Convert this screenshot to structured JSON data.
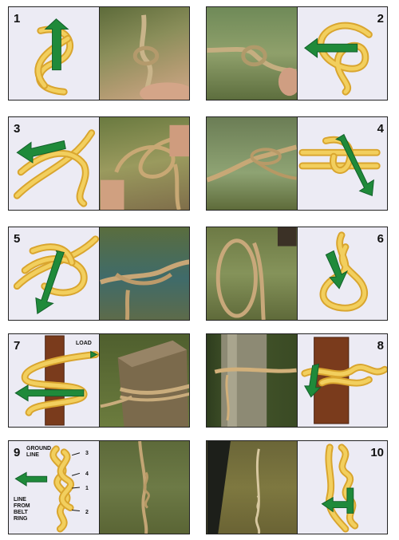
{
  "panels": [
    {
      "number": "1"
    },
    {
      "number": "2"
    },
    {
      "number": "3"
    },
    {
      "number": "4"
    },
    {
      "number": "5"
    },
    {
      "number": "6"
    },
    {
      "number": "7",
      "label": "LOAD"
    },
    {
      "number": "8"
    },
    {
      "number": "9",
      "labels": {
        "ground_line": "GROUND LINE",
        "line_from_belt_ring": "LINE FROM BELT RING",
        "marks": [
          "3",
          "4",
          "1",
          "2"
        ]
      }
    },
    {
      "number": "10"
    }
  ],
  "colors": {
    "rope": "#d9a52e",
    "rope_highlight": "#f2cf5e",
    "arrow": "#1f8a3a",
    "diagram_bg": "#ecebf4",
    "post": "#7a3b1c"
  }
}
